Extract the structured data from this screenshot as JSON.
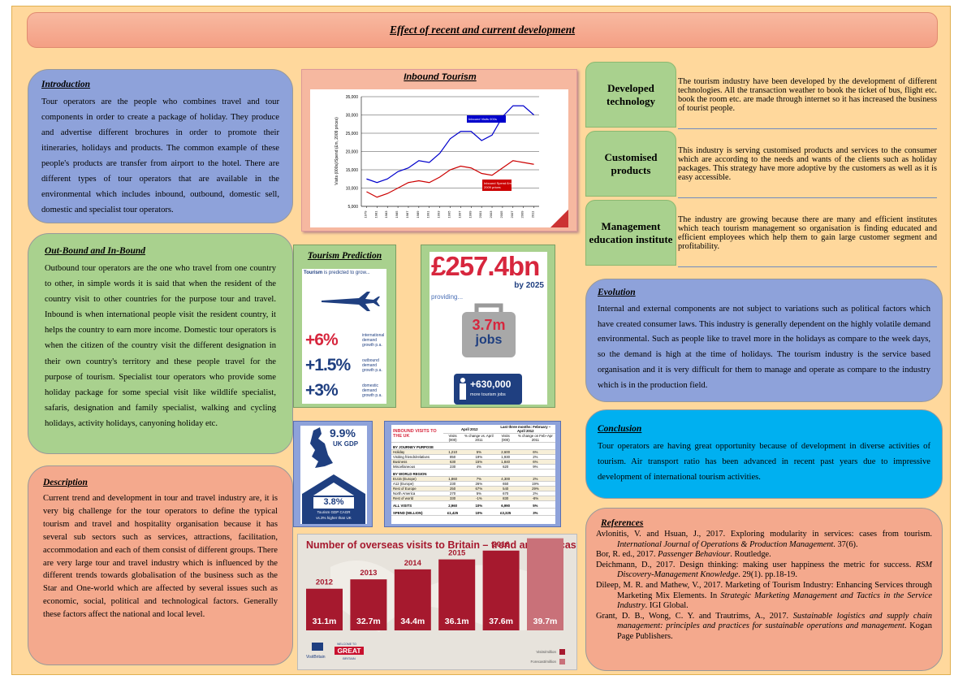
{
  "header": {
    "title": "Effect of recent and current development"
  },
  "introduction": {
    "heading": "Introduction",
    "text": "Tour operators are the people who combines travel and tour components in order to create a package of holiday. They produce and advertise different brochures in order to promote their itineraries, holidays and products. The common example of these people's products are transfer from airport to the hotel. There are different types of tour operators that are available in the environmental which includes inbound, outbound, domestic sell, domestic and specialist tour operators."
  },
  "outbound": {
    "heading": "Out-Bound and In-Bound",
    "text": "Outbound tour operators are the one who travel from one country to other, in simple words it is said that when the resident of the country visit to other countries for the purpose tour and travel. Inbound is when international people visit the resident country, it helps the country to earn more income. Domestic tour operators is when the citizen of the country visit the different designation in their own country's territory and these people travel for the purpose of tourism. Specialist tour operators who provide some holiday package for some special visit like wildlife specialist, safaris, designation and family specialist, walking and cycling holidays, activity holidays, canyoning holiday etc."
  },
  "description": {
    "heading": "Description",
    "text": "Current trend and development in tour and travel industry are, it is very big challenge for the tour operators to define the typical tourism and travel and hospitality organisation because it has several sub sectors such as services, attractions, facilitation, accommodation and each of them consist of different groups. There are very large tour and travel industry which is influenced by the different trends towards globalisation of the business such as the Star and One-world which are affected by several issues such as economic, social, political and technological factors. Generally these factors affect the national and local level."
  },
  "inbound_chart": {
    "type": "line",
    "title": "Inbound Tourism",
    "y_label": "Visits (000s)/Spend (£m, 2009 prices)",
    "x": [
      1979,
      1981,
      1983,
      1985,
      1987,
      1989,
      1991,
      1993,
      1995,
      1997,
      1999,
      2001,
      2003,
      2005,
      2007,
      2009,
      2011
    ],
    "series": [
      {
        "name": "Inbound Visits 000s",
        "color": "#0000cc",
        "values": [
          12500,
          11500,
          12500,
          14500,
          15500,
          17500,
          17000,
          19500,
          23500,
          25500,
          25500,
          23000,
          24500,
          29500,
          32500,
          32500,
          30000
        ]
      },
      {
        "name": "Inbound Spend £m, 2009 prices",
        "color": "#cc0000",
        "values": [
          9000,
          7500,
          8500,
          10000,
          11500,
          12000,
          11500,
          13000,
          15000,
          16000,
          15500,
          14000,
          13500,
          15500,
          17500,
          17000,
          16500
        ]
      }
    ],
    "xlim": [
      1978,
      2012
    ],
    "ylim": [
      5000,
      35000
    ],
    "yticks": [
      {
        "value": 5000,
        "label": "5,000"
      },
      {
        "value": 10000,
        "label": "10,000"
      },
      {
        "value": 15000,
        "label": "15,000"
      },
      {
        "value": 20000,
        "label": "20,000"
      },
      {
        "value": 25000,
        "label": "25,000"
      },
      {
        "value": 30000,
        "label": "30,000"
      },
      {
        "value": 35000,
        "label": "35,000"
      }
    ],
    "grid": true
  },
  "prediction": {
    "heading": "Tourism Prediction",
    "intro_strong": "Tourism",
    "intro": "is predicted to grow...",
    "items": [
      {
        "value": "+6%",
        "label": "international demand growth p.a."
      },
      {
        "value": "+1.5%",
        "label": "outbound demand growth p.a."
      },
      {
        "value": "+3%",
        "label": "domestic demand growth p.a."
      }
    ]
  },
  "economy": {
    "amount": "£257.4bn",
    "year": "by 2025",
    "providing": "providing...",
    "jobs_value": "3.7m",
    "jobs_label": "jobs",
    "more_value": "+630,000",
    "more_label": "more tourism jobs"
  },
  "gdp": {
    "value": "9.9%",
    "label": "UK GDP",
    "cagr": "3.8%",
    "cagr_label": "Tourism GDP CAGR",
    "cagr_note": "vs.3% higher than UK"
  },
  "visits_table": {
    "title": "INBOUND VISITS TO THE UK",
    "period1": "April 2012",
    "period2": "Last three months: February – April 2012",
    "columns": [
      "Visits (000)",
      "% change vs. April 2011",
      "Visits (000)",
      "% change on Feb–Apr 2011"
    ],
    "sections": [
      {
        "name": "BY JOURNEY PURPOSE",
        "rows": [
          [
            "Holiday",
            "1,210",
            "5%",
            "2,600",
            "6%"
          ],
          [
            "Visiting friends/relatives",
            "850",
            "19%",
            "1,930",
            "2%"
          ],
          [
            "Business",
            "630",
            "15%",
            "1,840",
            "6%"
          ],
          [
            "Miscellaneous",
            "230",
            "4%",
            "620",
            "9%"
          ]
        ]
      },
      {
        "name": "BY WORLD REGION",
        "rows": [
          [
            "EU15 (Europe)",
            "1,860",
            "7%",
            "4,300",
            "2%"
          ],
          [
            "A12 (Europe)",
            "230",
            "26%",
            "650",
            "19%"
          ],
          [
            "Rest of Europe",
            "250",
            "67%",
            "540",
            "29%"
          ],
          [
            "North America",
            "270",
            "5%",
            "670",
            "2%"
          ],
          [
            "Rest of world",
            "330",
            "-1%",
            "830",
            "-8%"
          ]
        ]
      }
    ],
    "totals": [
      [
        "ALL VISITS",
        "2,960",
        "10%",
        "6,990",
        "5%"
      ],
      [
        "SPEND (MILLION)",
        "£1,425",
        "10%",
        "£3,325",
        "3%"
      ]
    ]
  },
  "visits_chart": {
    "type": "bar",
    "title": "Number of overseas visits to Britain – trend and forecast",
    "categories": [
      "2012",
      "2013",
      "2014",
      "2015",
      "2016",
      "2017"
    ],
    "values": [
      31.1,
      32.7,
      34.4,
      36.1,
      37.6,
      39.7
    ],
    "value_labels": [
      "31.1m",
      "32.7m",
      "34.4m",
      "36.1m",
      "37.6m",
      "39.7m"
    ],
    "colors": [
      "#a6192e",
      "#a6192e",
      "#a6192e",
      "#a6192e",
      "#a6192e",
      "#c97179"
    ],
    "ylim": [
      24,
      42
    ],
    "legend": [
      {
        "name": "Visits/million",
        "color": "#a6192e"
      },
      {
        "name": "Forecast/million",
        "color": "#c97179"
      }
    ],
    "logos": [
      "VisitBritain",
      "WELCOME TO",
      "GREAT",
      "BRITAIN"
    ]
  },
  "developments": [
    {
      "label": "Developed technology",
      "text": "The tourism industry have been developed by the development of different technologies. All the transaction weather to book the ticket of bus, flight etc. book the room etc. are made through internet so it has increased the business of tourist people."
    },
    {
      "label": "Customised products",
      "text": "This industry is serving customised products and services to the consumer which are according to the needs and wants of the clients such as holiday packages. This strategy have more adoptive by the customers as well as it is easy accessible."
    },
    {
      "label": "Management education institute",
      "text": "The industry are growing because there are many and efficient institutes which teach tourism management so organisation is finding educated and efficient employees which help them to gain large customer segment and profitability."
    }
  ],
  "evolution": {
    "heading": "Evolution",
    "text": "Internal and external components are not subject to variations such as political factors which have created consumer laws. This industry is generally dependent on the highly volatile demand environmental. Such as people like to travel more in the holidays as compare to the week days, so the demand is high at the time of holidays. The tourism industry is the service based organisation and it is very difficult for them to manage and operate as compare to the industry which is in the production field."
  },
  "conclusion": {
    "heading": "Conclusion",
    "text": "Tour operators are having great opportunity because of development in diverse activities of tourism. Air transport ratio has been advanced in recent past years due to impressive development of international tourism activities."
  },
  "references": {
    "heading": "References",
    "items": [
      [
        {
          "t": "Avlonitis, V. and Hsuan, J., 2017. Exploring modularity in services: cases from tourism. "
        },
        {
          "t": "International Journal of Operations & Production Management",
          "i": true
        },
        {
          "t": ". 37(6)."
        }
      ],
      [
        {
          "t": "Bor, R. ed., 2017. "
        },
        {
          "t": "Passenger Behaviour",
          "i": true
        },
        {
          "t": ". Routledge."
        }
      ],
      [
        {
          "t": "Deichmann, D., 2017. Design thinking: making user happiness the metric for success. "
        },
        {
          "t": "RSM Discovery-Management Knowledge",
          "i": true
        },
        {
          "t": ". 29(1). pp.18-19."
        }
      ],
      [
        {
          "t": "Dileep, M. R. and Mathew, V., 2017. Marketing of Tourism Industry: Enhancing Services through Marketing Mix Elements. In "
        },
        {
          "t": "Strategic Marketing Management and Tactics in the Service Industry",
          "i": true
        },
        {
          "t": ". IGI Global."
        }
      ],
      [
        {
          "t": "Grant, D. B., Wong, C. Y. and Trautrims, A., 2017. "
        },
        {
          "t": "Sustainable logistics and supply chain management: principles and practices for sustainable operations and management",
          "i": true
        },
        {
          "t": ". Kogan Page Publishers."
        }
      ]
    ]
  }
}
